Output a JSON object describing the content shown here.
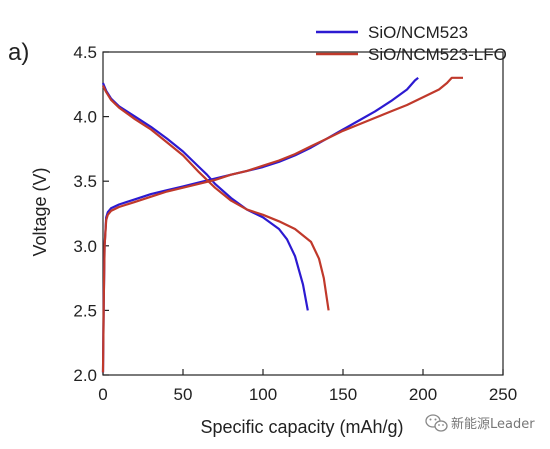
{
  "panel_label": "a)",
  "watermark": {
    "text": "新能源Leader",
    "icon": "wechat-icon"
  },
  "chart_data": {
    "type": "line",
    "title": "",
    "xlabel": "Specific capacity (mAh/g)",
    "ylabel": "Voltage (V)",
    "xlim": [
      0,
      250
    ],
    "ylim": [
      2.0,
      4.5
    ],
    "xticks": [
      0,
      50,
      100,
      150,
      200,
      250
    ],
    "yticks": [
      2.0,
      2.5,
      3.0,
      3.5,
      4.0,
      4.5
    ],
    "ytick_labels": [
      "2.0",
      "2.5",
      "3.0",
      "3.5",
      "4.0",
      "4.5"
    ],
    "grid": false,
    "legend": "top-right",
    "series": [
      {
        "name": "SiO/NCM523",
        "color": "#2c1ad1",
        "charge": [
          [
            0,
            2.02
          ],
          [
            0.5,
            2.6
          ],
          [
            1,
            3.0
          ],
          [
            2,
            3.22
          ],
          [
            3,
            3.26
          ],
          [
            5,
            3.29
          ],
          [
            10,
            3.32
          ],
          [
            20,
            3.36
          ],
          [
            30,
            3.4
          ],
          [
            40,
            3.43
          ],
          [
            50,
            3.46
          ],
          [
            60,
            3.49
          ],
          [
            70,
            3.52
          ],
          [
            80,
            3.55
          ],
          [
            90,
            3.58
          ],
          [
            100,
            3.61
          ],
          [
            110,
            3.65
          ],
          [
            120,
            3.7
          ],
          [
            130,
            3.76
          ],
          [
            140,
            3.83
          ],
          [
            150,
            3.9
          ],
          [
            160,
            3.97
          ],
          [
            170,
            4.04
          ],
          [
            180,
            4.12
          ],
          [
            190,
            4.21
          ],
          [
            195,
            4.28
          ],
          [
            197,
            4.3
          ]
        ],
        "discharge": [
          [
            0,
            4.26
          ],
          [
            2,
            4.2
          ],
          [
            5,
            4.14
          ],
          [
            10,
            4.08
          ],
          [
            20,
            4.0
          ],
          [
            30,
            3.92
          ],
          [
            40,
            3.83
          ],
          [
            50,
            3.73
          ],
          [
            60,
            3.61
          ],
          [
            65,
            3.55
          ],
          [
            70,
            3.48
          ],
          [
            80,
            3.37
          ],
          [
            90,
            3.28
          ],
          [
            100,
            3.22
          ],
          [
            110,
            3.13
          ],
          [
            115,
            3.05
          ],
          [
            120,
            2.92
          ],
          [
            125,
            2.7
          ],
          [
            128,
            2.5
          ]
        ]
      },
      {
        "name": "SiO/NCM523-LFO",
        "color": "#c0392b",
        "charge": [
          [
            0,
            2.02
          ],
          [
            0.5,
            2.6
          ],
          [
            1,
            3.0
          ],
          [
            2,
            3.2
          ],
          [
            3,
            3.24
          ],
          [
            5,
            3.27
          ],
          [
            10,
            3.3
          ],
          [
            20,
            3.34
          ],
          [
            30,
            3.38
          ],
          [
            40,
            3.42
          ],
          [
            50,
            3.45
          ],
          [
            60,
            3.48
          ],
          [
            70,
            3.51
          ],
          [
            80,
            3.55
          ],
          [
            90,
            3.58
          ],
          [
            100,
            3.62
          ],
          [
            110,
            3.66
          ],
          [
            120,
            3.71
          ],
          [
            130,
            3.77
          ],
          [
            140,
            3.83
          ],
          [
            150,
            3.89
          ],
          [
            160,
            3.94
          ],
          [
            170,
            3.99
          ],
          [
            180,
            4.04
          ],
          [
            190,
            4.09
          ],
          [
            200,
            4.15
          ],
          [
            210,
            4.21
          ],
          [
            215,
            4.26
          ],
          [
            218,
            4.3
          ],
          [
            225,
            4.3
          ]
        ],
        "discharge": [
          [
            0,
            4.24
          ],
          [
            2,
            4.19
          ],
          [
            5,
            4.13
          ],
          [
            10,
            4.07
          ],
          [
            20,
            3.98
          ],
          [
            30,
            3.9
          ],
          [
            40,
            3.8
          ],
          [
            50,
            3.7
          ],
          [
            60,
            3.57
          ],
          [
            70,
            3.45
          ],
          [
            80,
            3.35
          ],
          [
            90,
            3.28
          ],
          [
            100,
            3.24
          ],
          [
            110,
            3.19
          ],
          [
            120,
            3.13
          ],
          [
            130,
            3.03
          ],
          [
            135,
            2.9
          ],
          [
            138,
            2.75
          ],
          [
            141,
            2.5
          ]
        ]
      }
    ]
  }
}
